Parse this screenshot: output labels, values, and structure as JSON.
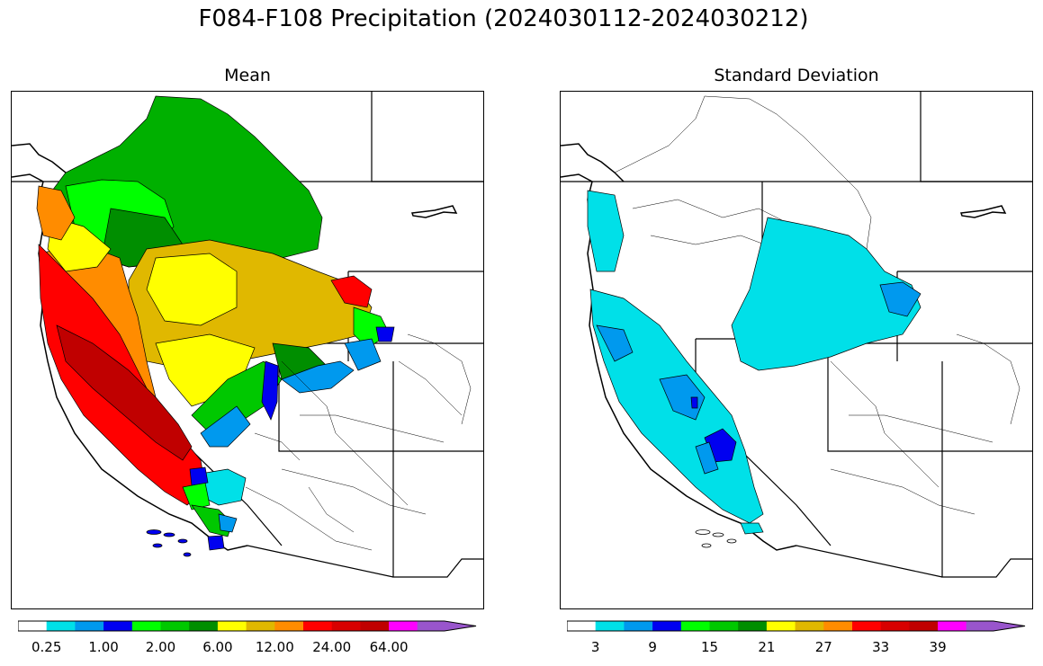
{
  "figure": {
    "title": "F084-F108 Precipitation (2024030112-2024030212)"
  },
  "panels": [
    {
      "title": "Mean",
      "legend": {
        "colors": [
          "#ffffff",
          "#00e0e8",
          "#0099ee",
          "#0000f0",
          "#00ff00",
          "#00c800",
          "#008e00",
          "#ffff00",
          "#e0b800",
          "#ff8c00",
          "#ff0000",
          "#d80000",
          "#c00000",
          "#ff00ff",
          "#9955cc"
        ],
        "tick_labels": [
          "0.25",
          "1.00",
          "2.00",
          "6.00",
          "12.00",
          "24.00",
          "64.00"
        ]
      }
    },
    {
      "title": "Standard Deviation",
      "legend": {
        "colors": [
          "#ffffff",
          "#00e0e8",
          "#0099ee",
          "#0000f0",
          "#00ff00",
          "#00c800",
          "#008e00",
          "#ffff00",
          "#e0b800",
          "#ff8c00",
          "#ff0000",
          "#d80000",
          "#c00000",
          "#ff00ff",
          "#9955cc"
        ],
        "tick_labels": [
          "3",
          "9",
          "15",
          "21",
          "27",
          "33",
          "39"
        ]
      }
    }
  ]
}
